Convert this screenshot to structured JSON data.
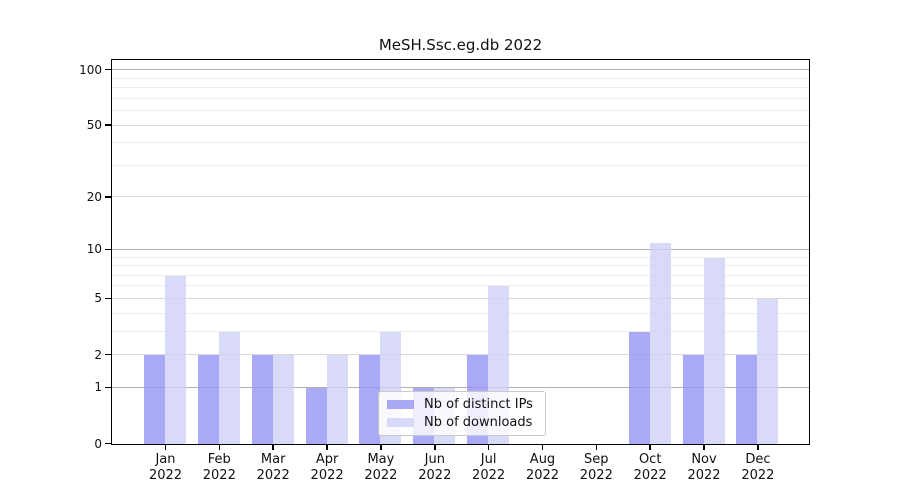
{
  "figure": {
    "background": "#ffffff",
    "text_color": "#111111"
  },
  "chart_data": {
    "type": "bar",
    "title": "MeSH.Ssc.eg.db 2022",
    "x_months": [
      "Jan",
      "Feb",
      "Mar",
      "Apr",
      "May",
      "Jun",
      "Jul",
      "Aug",
      "Sep",
      "Oct",
      "Nov",
      "Dec"
    ],
    "x_year": "2022",
    "series": [
      {
        "name": "Nb of distinct IPs",
        "color": "rgba(148,148,243,0.8)",
        "values": [
          2,
          2,
          2,
          1,
          2,
          1,
          2,
          0,
          0,
          3,
          2,
          2
        ]
      },
      {
        "name": "Nb of downloads",
        "color": "rgba(207,207,246,0.8)",
        "values": [
          7,
          3,
          2,
          2,
          3,
          1,
          6,
          0,
          0,
          11,
          9,
          5
        ]
      }
    ],
    "yscale": "log1p",
    "ylim": [
      0,
      100
    ],
    "y_tick_labels": [
      100,
      50,
      20,
      10,
      5,
      2,
      1,
      0
    ],
    "y_major_gridlines": [
      1,
      10,
      100
    ],
    "y_minor_gridlines": [
      3,
      4,
      6,
      7,
      8,
      9,
      30,
      40,
      60,
      70,
      80,
      90
    ],
    "grid": true,
    "legend_position": "lower center",
    "gridline_colors": {
      "major": "#b0b0b0",
      "labeled": "#d9d9d9",
      "minor": "#ededed"
    }
  }
}
